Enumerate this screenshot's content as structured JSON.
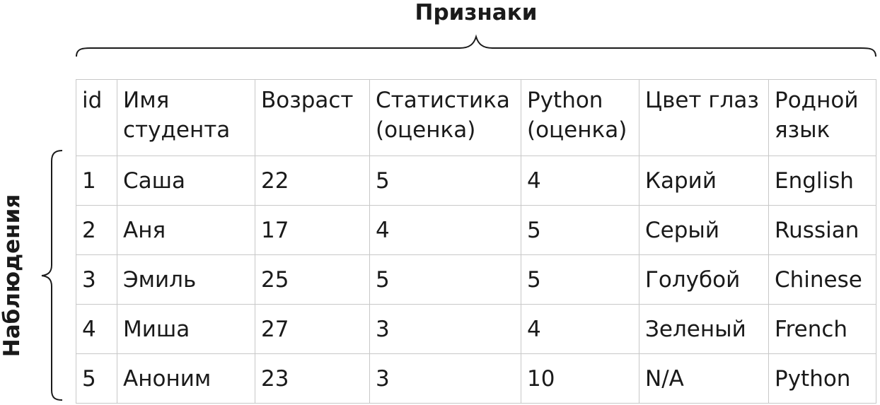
{
  "features_label": "Признаки",
  "observations_label": "Наблюдения",
  "table": {
    "header": [
      [
        "id"
      ],
      [
        "Имя",
        "студента"
      ],
      [
        "Возраст"
      ],
      [
        "Статистика",
        "(оценка)"
      ],
      [
        "Python",
        "(оценка)"
      ],
      [
        "Цвет глаз"
      ],
      [
        "Родной",
        "язык"
      ]
    ],
    "rows": [
      [
        "1",
        "Саша",
        "22",
        "5",
        "4",
        "Карий",
        "English"
      ],
      [
        "2",
        "Аня",
        "17",
        "4",
        "5",
        "Серый",
        "Russian"
      ],
      [
        "3",
        "Эмиль",
        "25",
        "5",
        "5",
        "Голубой",
        "Chinese"
      ],
      [
        "4",
        "Миша",
        "27",
        "3",
        "4",
        "Зеленый",
        "French"
      ],
      [
        "5",
        "Аноним",
        "23",
        "3",
        "10",
        "N/A",
        "Python"
      ]
    ]
  }
}
